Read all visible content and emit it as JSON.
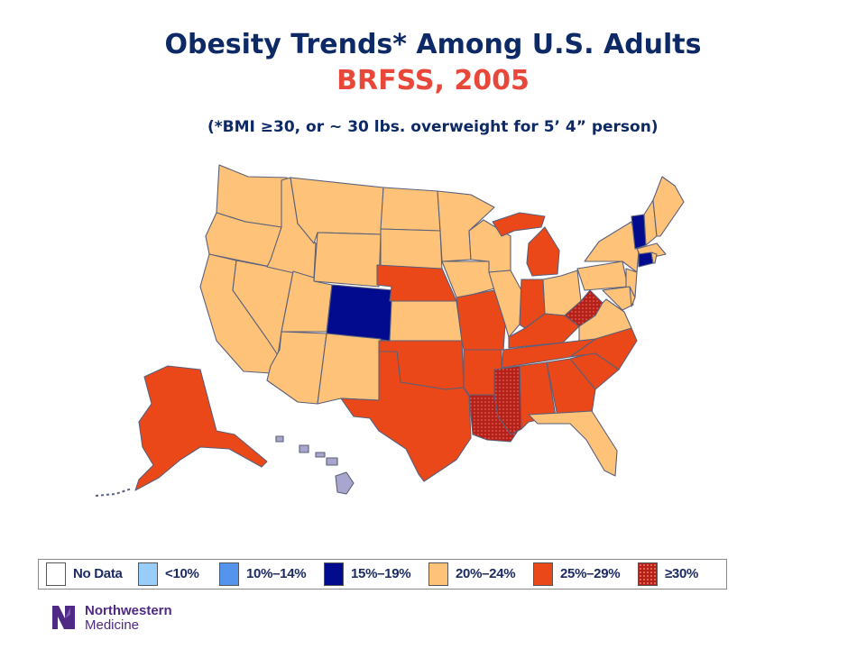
{
  "title": "Obesity Trends* Among U.S. Adults",
  "subtitle": "BRFSS, 2005",
  "note": "(*BMI ≥30, or ~ 30 lbs. overweight for 5’ 4” person)",
  "colors": {
    "title": "#0d2a66",
    "subtitle": "#e8483a",
    "no_data": "#ffffff",
    "lt10": "#99cdf9",
    "10_14": "#5494ec",
    "15_19": "#020b8e",
    "20_24": "#fec378",
    "25_29": "#ea4818",
    "ge30": "#b5201b"
  },
  "legend": [
    {
      "label": "No Data",
      "color": "#ffffff"
    },
    {
      "label": "<10%",
      "color": "#99cdf9"
    },
    {
      "label": "10%–14%",
      "color": "#5494ec"
    },
    {
      "label": "15%–19%",
      "color": "#020b8e"
    },
    {
      "label": "20%–24%",
      "color": "#fec378"
    },
    {
      "label": "25%–29%",
      "color": "#ea4818"
    },
    {
      "label": "≥30%",
      "color": "#b5201b"
    }
  ],
  "states": {
    "15_19": [
      "Colorado",
      "Vermont",
      "Connecticut"
    ],
    "20_24": [
      "Washington",
      "Oregon",
      "California",
      "Nevada",
      "Idaho",
      "Montana",
      "Wyoming",
      "Utah",
      "Arizona",
      "New Mexico",
      "North Dakota",
      "South Dakota",
      "Kansas",
      "Minnesota",
      "Iowa",
      "Wisconsin",
      "Illinois",
      "Ohio",
      "Pennsylvania",
      "New York",
      "New Jersey",
      "Maryland",
      "Delaware",
      "Virginia",
      "Maine",
      "New Hampshire",
      "Massachusetts",
      "Rhode Island",
      "Florida",
      "Hawaii"
    ],
    "25_29": [
      "Nebraska",
      "Missouri",
      "Oklahoma",
      "Texas",
      "Arkansas",
      "Michigan",
      "Indiana",
      "Kentucky",
      "Tennessee",
      "Alabama",
      "Georgia",
      "South Carolina",
      "North Carolina",
      "Alaska"
    ],
    "ge30": [
      "Louisiana",
      "Mississippi",
      "West Virginia"
    ]
  },
  "logo": {
    "line1": "Northwestern",
    "line2": "Medicine",
    "mark": "NM"
  }
}
